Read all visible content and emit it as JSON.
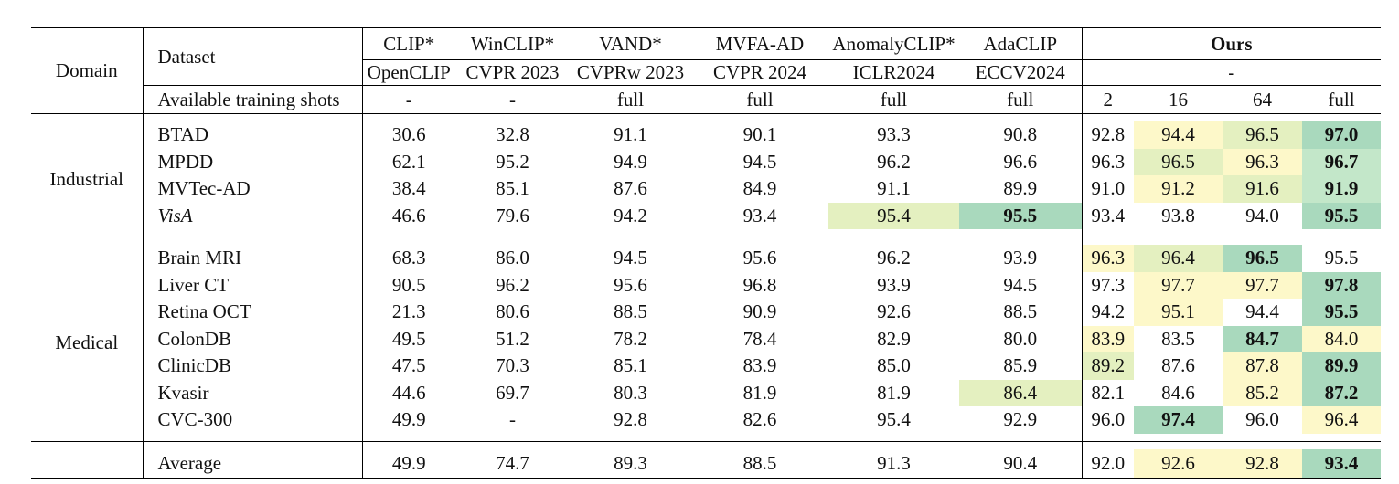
{
  "headers": {
    "domain": "Domain",
    "dataset": "Dataset",
    "shots_label": "Available training shots",
    "methods": [
      {
        "name": "CLIP*",
        "venue": "OpenCLIP",
        "shots": "-"
      },
      {
        "name": "WinCLIP*",
        "venue": "CVPR 2023",
        "shots": "-"
      },
      {
        "name": "VAND*",
        "venue": "CVPRw 2023",
        "shots": "full"
      },
      {
        "name": "MVFA-AD",
        "venue": "CVPR 2024",
        "shots": "full"
      },
      {
        "name": "AnomalyCLIP*",
        "venue": "ICLR2024",
        "shots": "full"
      },
      {
        "name": "AdaCLIP",
        "venue": "ECCV2024",
        "shots": "full"
      }
    ],
    "ours": {
      "name": "Ours",
      "venue": "-",
      "shots": [
        "2",
        "16",
        "64",
        "full"
      ]
    }
  },
  "domains": [
    {
      "name": "Industrial",
      "rows": [
        {
          "dataset": "BTAD",
          "italic": false,
          "values": [
            "30.6",
            "32.8",
            "91.1",
            "90.1",
            "93.3",
            "90.8",
            "92.8",
            "94.4",
            "96.5",
            "97.0"
          ],
          "bold": [
            9
          ],
          "shade": {
            "7": "t1",
            "8": "t2",
            "9": "t4"
          }
        },
        {
          "dataset": "MPDD",
          "italic": false,
          "values": [
            "62.1",
            "95.2",
            "94.9",
            "94.5",
            "96.2",
            "96.6",
            "96.3",
            "96.5",
            "96.3",
            "96.7"
          ],
          "bold": [
            9
          ],
          "shade": {
            "7": "t2",
            "8": "t1",
            "9": "t3"
          }
        },
        {
          "dataset": "MVTec-AD",
          "italic": false,
          "values": [
            "38.4",
            "85.1",
            "87.6",
            "84.9",
            "91.1",
            "89.9",
            "91.0",
            "91.2",
            "91.6",
            "91.9"
          ],
          "bold": [
            9
          ],
          "shade": {
            "7": "t1",
            "8": "t2",
            "9": "t3"
          }
        },
        {
          "dataset": "VisA",
          "italic": true,
          "values": [
            "46.6",
            "79.6",
            "94.2",
            "93.4",
            "95.4",
            "95.5",
            "93.4",
            "93.8",
            "94.0",
            "95.5"
          ],
          "bold": [
            5,
            9
          ],
          "shade": {
            "4": "t2",
            "5": "t4",
            "9": "t4"
          }
        }
      ]
    },
    {
      "name": "Medical",
      "rows": [
        {
          "dataset": "Brain MRI",
          "italic": false,
          "values": [
            "68.3",
            "86.0",
            "94.5",
            "95.6",
            "96.2",
            "93.9",
            "96.3",
            "96.4",
            "96.5",
            "95.5"
          ],
          "bold": [
            8
          ],
          "shade": {
            "6": "t1",
            "7": "t2",
            "8": "t4"
          }
        },
        {
          "dataset": "Liver CT",
          "italic": false,
          "values": [
            "90.5",
            "96.2",
            "95.6",
            "96.8",
            "93.9",
            "94.5",
            "97.3",
            "97.7",
            "97.7",
            "97.8"
          ],
          "bold": [
            9
          ],
          "shade": {
            "7": "t1",
            "8": "t1",
            "9": "t4"
          }
        },
        {
          "dataset": "Retina OCT",
          "italic": false,
          "values": [
            "21.3",
            "80.6",
            "88.5",
            "90.9",
            "92.6",
            "88.5",
            "94.2",
            "95.1",
            "94.4",
            "95.5"
          ],
          "bold": [
            9
          ],
          "shade": {
            "7": "t1",
            "9": "t4"
          }
        },
        {
          "dataset": "ColonDB",
          "italic": false,
          "values": [
            "49.5",
            "51.2",
            "78.2",
            "78.4",
            "82.9",
            "80.0",
            "83.9",
            "83.5",
            "84.7",
            "84.0"
          ],
          "bold": [
            8
          ],
          "shade": {
            "6": "t1",
            "8": "t4",
            "9": "t1"
          }
        },
        {
          "dataset": "ClinicDB",
          "italic": false,
          "values": [
            "47.5",
            "70.3",
            "85.1",
            "83.9",
            "85.0",
            "85.9",
            "89.2",
            "87.6",
            "87.8",
            "89.9"
          ],
          "bold": [
            9
          ],
          "shade": {
            "6": "t2",
            "8": "t1",
            "9": "t4"
          }
        },
        {
          "dataset": "Kvasir",
          "italic": false,
          "values": [
            "44.6",
            "69.7",
            "80.3",
            "81.9",
            "81.9",
            "86.4",
            "82.1",
            "84.6",
            "85.2",
            "87.2"
          ],
          "bold": [
            9
          ],
          "shade": {
            "5": "t2",
            "8": "t1",
            "9": "t4"
          }
        },
        {
          "dataset": "CVC-300",
          "italic": false,
          "values": [
            "49.9",
            "-",
            "92.8",
            "82.6",
            "95.4",
            "92.9",
            "96.0",
            "97.4",
            "96.0",
            "96.4"
          ],
          "bold": [
            7
          ],
          "shade": {
            "7": "t4",
            "9": "t1"
          }
        }
      ]
    }
  ],
  "average": {
    "label": "Average",
    "values": [
      "49.9",
      "74.7",
      "89.3",
      "88.5",
      "91.3",
      "90.4",
      "92.0",
      "92.6",
      "92.8",
      "93.4"
    ],
    "bold": [
      9
    ],
    "shade": {
      "7": "t1",
      "8": "t1",
      "9": "t4"
    }
  }
}
